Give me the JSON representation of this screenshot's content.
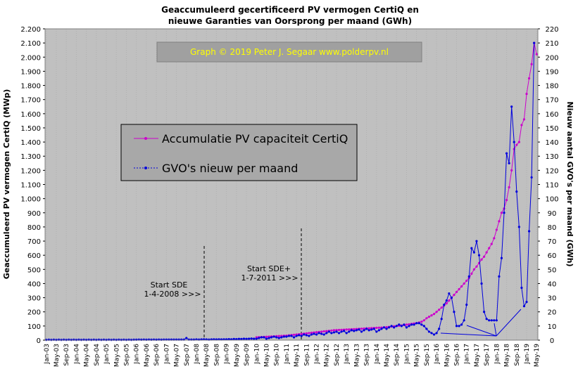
{
  "chart_data": {
    "type": "line",
    "title_lines": [
      "Geaccumuleerd gecertificeerd PV vermogen CertiQ en",
      "nieuwe Garanties van Oorsprong per maand (GWh)"
    ],
    "watermark": "Graph  © 2019  Peter J. Segaar  www.polderpv.nl",
    "y_label": "Geaccumuleerd PV vermogen CertiQ (MWp)",
    "y2_label": "Nieuw aantal GVO's per maand (GWh)",
    "annotations": [
      "Start SDE",
      "1-4-2008  >>>",
      "Start SDE+",
      "1-7-2011  >>>"
    ],
    "categories": [
      "Jan-03",
      null,
      null,
      null,
      "May-03",
      null,
      null,
      null,
      "Sep-03",
      null,
      null,
      null,
      "Jan-04",
      null,
      null,
      null,
      "May-04",
      null,
      null,
      null,
      "Sep-04",
      null,
      null,
      null,
      "Jan-05",
      null,
      null,
      null,
      "May-05",
      null,
      null,
      null,
      "Sep-05",
      null,
      null,
      null,
      "Jan-06",
      null,
      null,
      null,
      "May-06",
      null,
      null,
      null,
      "Sep-06",
      null,
      null,
      null,
      "Jan-07",
      null,
      null,
      null,
      "May-07",
      null,
      null,
      null,
      "Sep-07",
      null,
      null,
      null,
      "Jan-08",
      null,
      null,
      null,
      "May-08",
      null,
      null,
      null,
      "Sep-08",
      null,
      null,
      null,
      "Jan-09",
      null,
      null,
      null,
      "May-09",
      null,
      null,
      null,
      "Sep-09",
      null,
      null,
      null,
      "Jan-10",
      null,
      null,
      null,
      "May-10",
      null,
      null,
      null,
      "Sep-10",
      null,
      null,
      null,
      "Jan-11",
      null,
      null,
      null,
      "May-11",
      null,
      null,
      null,
      "Sep-11",
      null,
      null,
      null,
      "Jan-12",
      null,
      null,
      null,
      "May-12",
      null,
      null,
      null,
      "Sep-12",
      null,
      null,
      null,
      "Jan-13",
      null,
      null,
      null,
      "May-13",
      null,
      null,
      null,
      "Sep-13",
      null,
      null,
      null,
      "Jan-14",
      null,
      null,
      null,
      "May-14",
      null,
      null,
      null,
      "Sep-14",
      null,
      null,
      null,
      "Jan-15",
      null,
      null,
      null,
      "May-15",
      null,
      null,
      null,
      "Sep-15",
      null,
      null,
      null,
      "Jan-16",
      null,
      null,
      null,
      "May-16",
      null,
      null,
      null,
      "Sep-16",
      null,
      null,
      null,
      "Jan-17",
      null,
      null,
      null,
      "May-17",
      null,
      null,
      null,
      "Sep-17",
      null,
      null,
      null,
      "Jan-18",
      null,
      null,
      null,
      "May-18",
      null,
      null,
      null,
      "Sep-18",
      null,
      null,
      null,
      "Jan-19",
      null,
      null,
      null,
      "May-19"
    ],
    "series": [
      {
        "name": "Accumulatie PV capaciteit CertiQ",
        "color": "#cc00cc",
        "axis": "y",
        "values": [
          null,
          null,
          null,
          null,
          null,
          null,
          null,
          null,
          null,
          null,
          null,
          null,
          null,
          null,
          null,
          null,
          null,
          null,
          null,
          null,
          null,
          null,
          null,
          null,
          null,
          null,
          null,
          null,
          null,
          null,
          null,
          null,
          null,
          null,
          null,
          null,
          null,
          null,
          null,
          null,
          null,
          null,
          null,
          null,
          null,
          null,
          null,
          null,
          null,
          null,
          null,
          null,
          null,
          null,
          null,
          null,
          null,
          null,
          null,
          null,
          null,
          null,
          null,
          null,
          null,
          null,
          null,
          null,
          null,
          null,
          null,
          null,
          null,
          null,
          null,
          null,
          null,
          null,
          null,
          null,
          null,
          null,
          null,
          null,
          20,
          21,
          22,
          23,
          24,
          25,
          26,
          27,
          28,
          29,
          30,
          31,
          32,
          34,
          36,
          38,
          40,
          42,
          44,
          46,
          48,
          50,
          52,
          54,
          56,
          58,
          60,
          62,
          64,
          66,
          68,
          70,
          71,
          72,
          73,
          74,
          75,
          76,
          77,
          78,
          79,
          80,
          81,
          82,
          83,
          84,
          85,
          86,
          87,
          88,
          89,
          90,
          92,
          94,
          96,
          98,
          100,
          102,
          104,
          107,
          110,
          112,
          115,
          118,
          120,
          125,
          130,
          140,
          155,
          165,
          175,
          185,
          200,
          215,
          230,
          245,
          260,
          280,
          300,
          320,
          340,
          360,
          380,
          400,
          420,
          440,
          470,
          500,
          520,
          545,
          570,
          590,
          620,
          650,
          680,
          720,
          780,
          840,
          900,
          930,
          990,
          1080,
          1200,
          1350,
          1380,
          1400,
          1520,
          1560,
          1740,
          1850,
          1950,
          2100,
          2020
        ]
      },
      {
        "name": "GVO's nieuw per maand",
        "color": "#0000dd",
        "axis": "y2",
        "values": [
          0.2,
          0.3,
          0.2,
          0.3,
          0.2,
          0.3,
          0.2,
          0.3,
          0.2,
          0.3,
          0.2,
          0.3,
          0.2,
          0.3,
          0.2,
          0.3,
          0.2,
          0.3,
          0.2,
          0.3,
          0.2,
          0.3,
          0.2,
          0.3,
          0.2,
          0.3,
          0.2,
          0.3,
          0.2,
          0.3,
          0.2,
          0.3,
          0.2,
          0.3,
          0.2,
          0.3,
          0.3,
          0.4,
          0.3,
          0.4,
          0.3,
          0.4,
          0.3,
          0.4,
          0.3,
          0.4,
          0.3,
          0.4,
          0.4,
          0.4,
          0.4,
          0.4,
          0.4,
          0.4,
          0.4,
          0.4,
          1.5,
          0.4,
          0.4,
          0.4,
          0.5,
          0.4,
          0.5,
          0.6,
          0.5,
          0.4,
          0.5,
          0.6,
          0.5,
          0.6,
          0.5,
          0.6,
          0.6,
          0.7,
          0.6,
          0.8,
          0.7,
          0.9,
          0.8,
          1,
          0.9,
          1,
          1.1,
          1,
          1,
          1.5,
          2,
          2,
          1,
          1.5,
          2,
          2.5,
          2,
          1.5,
          2,
          2.5,
          2.5,
          3,
          3,
          2,
          3,
          3.5,
          3,
          4,
          3.5,
          3,
          4,
          4.5,
          4,
          5,
          4.5,
          4,
          5,
          6,
          5,
          5.5,
          6,
          5,
          6,
          6.5,
          5,
          6,
          7,
          6.5,
          7,
          7.5,
          6,
          7,
          8,
          7,
          7.5,
          8,
          6,
          7,
          8,
          9,
          8,
          9,
          10,
          9,
          10,
          11,
          10,
          11,
          9,
          10,
          11,
          11,
          12,
          12,
          11,
          10,
          8,
          6,
          5,
          4,
          5,
          8,
          15,
          25,
          28,
          33,
          30,
          20,
          10,
          10,
          11,
          14,
          25,
          45,
          65,
          62,
          70,
          60,
          40,
          20,
          15,
          14,
          14,
          14,
          14,
          45,
          58,
          90,
          132,
          125,
          165,
          140,
          105,
          80,
          37,
          24,
          27,
          77,
          115,
          210,
          null
        ]
      }
    ],
    "ylim": [
      0,
      2200
    ],
    "yticks": [
      0,
      100,
      200,
      300,
      400,
      500,
      600,
      700,
      800,
      900,
      {
        "value": 1000,
        "label": "1.000"
      },
      {
        "value": 1100,
        "label": "1.100"
      },
      {
        "value": 1200,
        "label": "1.200"
      },
      {
        "value": 1300,
        "label": "1.300"
      },
      {
        "value": 1400,
        "label": "1.400"
      },
      {
        "value": 1500,
        "label": "1.500"
      },
      {
        "value": 1600,
        "label": "1.600"
      },
      {
        "value": 1700,
        "label": "1.700"
      },
      {
        "value": 1800,
        "label": "1.800"
      },
      {
        "value": 1900,
        "label": "1.900"
      },
      {
        "value": 2000,
        "label": "2.000"
      },
      {
        "value": 2100,
        "label": "2.100"
      },
      {
        "value": 2200,
        "label": "2.200"
      }
    ],
    "y2lim": [
      0,
      220
    ],
    "y2ticks": [
      0,
      10,
      20,
      30,
      40,
      50,
      60,
      70,
      80,
      90,
      100,
      110,
      120,
      130,
      140,
      150,
      160,
      170,
      180,
      190,
      200,
      210,
      220
    ],
    "grid": true
  }
}
